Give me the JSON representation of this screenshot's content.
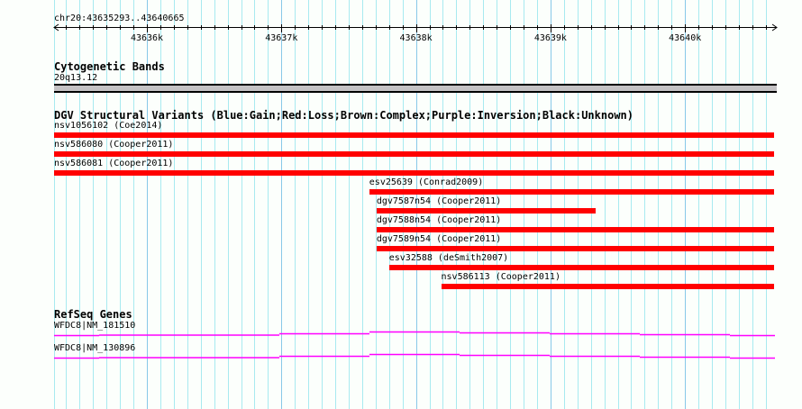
{
  "view": {
    "chrom": "chr20",
    "start": 43635293,
    "end": 43640665,
    "label": "chr20:43635293..43640665"
  },
  "ruler": {
    "ticks": [
      {
        "bp": 43636000,
        "label": "43636k"
      },
      {
        "bp": 43637000,
        "label": "43637k"
      },
      {
        "bp": 43638000,
        "label": "43638k"
      },
      {
        "bp": 43639000,
        "label": "43639k"
      },
      {
        "bp": 43640000,
        "label": "43640k"
      }
    ]
  },
  "cytobands": {
    "title": "Cytogenetic Bands",
    "band": "20q13.12",
    "color": "#c4c2c4"
  },
  "dgv": {
    "title": "DGV Structural Variants (Blue:Gain;Red:Loss;Brown:Complex;Purple:Inversion;Black:Unknown)",
    "variants": [
      {
        "label": "nsv1056102 (Coe2014)",
        "start": 43635293,
        "end": 43640665,
        "color": "#ff0000"
      },
      {
        "label": "nsv586080 (Cooper2011)",
        "start": 43635293,
        "end": 43640665,
        "color": "#ff0000"
      },
      {
        "label": "nsv586081 (Cooper2011)",
        "start": 43635293,
        "end": 43640665,
        "color": "#ff0000"
      },
      {
        "label": "esv25639 (Conrad2009)",
        "start": 43637653,
        "end": 43640665,
        "color": "#ff0000"
      },
      {
        "label": "dgv7587n54 (Cooper2011)",
        "start": 43637707,
        "end": 43639333,
        "color": "#ff0000"
      },
      {
        "label": "dgv7588n54 (Cooper2011)",
        "start": 43637707,
        "end": 43640665,
        "color": "#ff0000"
      },
      {
        "label": "dgv7589n54 (Cooper2011)",
        "start": 43637707,
        "end": 43640665,
        "color": "#ff0000"
      },
      {
        "label": "esv32588 (deSmith2007)",
        "start": 43637800,
        "end": 43640665,
        "color": "#ff0000"
      },
      {
        "label": "nsv586113 (Cooper2011)",
        "start": 43638187,
        "end": 43640665,
        "color": "#ff0000"
      }
    ]
  },
  "refseq": {
    "title": "RefSeq Genes",
    "color": "#ff00ff",
    "genes": [
      {
        "label": "WFDC8|NM_181510"
      },
      {
        "label": "WFDC8|NM_130896"
      }
    ]
  }
}
